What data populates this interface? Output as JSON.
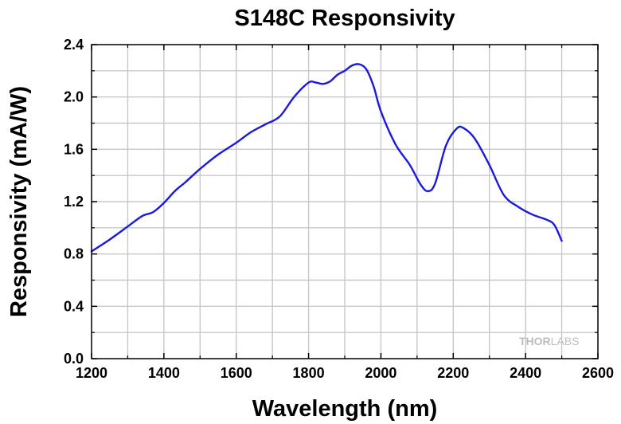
{
  "chart_data": {
    "type": "line",
    "title": "S148C Responsivity",
    "xlabel": "Wavelength (nm)",
    "ylabel": "Responsivity (mA/W)",
    "xlim": [
      1200,
      2600
    ],
    "ylim": [
      0.0,
      2.4
    ],
    "x_ticks": [
      1200,
      1400,
      1600,
      1800,
      2000,
      2200,
      2400,
      2600
    ],
    "y_ticks": [
      "0.0",
      "0.4",
      "0.8",
      "1.2",
      "1.6",
      "2.0",
      "2.4"
    ],
    "grid": true,
    "series_color": "#1a1adc",
    "series": [
      {
        "name": "S148C",
        "x": [
          1200,
          1250,
          1300,
          1340,
          1370,
          1400,
          1430,
          1460,
          1500,
          1550,
          1600,
          1640,
          1680,
          1720,
          1760,
          1800,
          1820,
          1840,
          1860,
          1880,
          1900,
          1920,
          1940,
          1960,
          1980,
          2000,
          2040,
          2080,
          2110,
          2130,
          2150,
          2180,
          2210,
          2230,
          2260,
          2300,
          2340,
          2380,
          2420,
          2460,
          2480,
          2500
        ],
        "y": [
          0.82,
          0.91,
          1.01,
          1.09,
          1.12,
          1.19,
          1.28,
          1.35,
          1.45,
          1.56,
          1.65,
          1.73,
          1.79,
          1.85,
          2.0,
          2.11,
          2.11,
          2.1,
          2.12,
          2.17,
          2.2,
          2.24,
          2.25,
          2.21,
          2.08,
          1.89,
          1.64,
          1.48,
          1.33,
          1.28,
          1.34,
          1.63,
          1.76,
          1.76,
          1.68,
          1.48,
          1.25,
          1.16,
          1.1,
          1.06,
          1.02,
          0.9
        ]
      }
    ]
  },
  "watermark": {
    "bold_part": "THOR",
    "light_part": "LABS"
  }
}
